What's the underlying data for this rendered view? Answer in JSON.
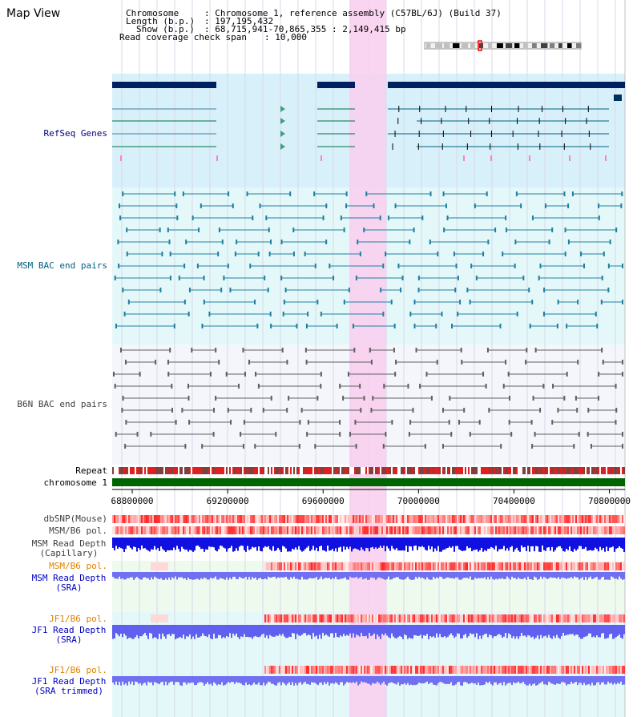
{
  "view": {
    "title": "Map View",
    "chromosome_label": "Chromosome",
    "chromosome_value": "Chromosome 1, reference assembly (C57BL/6J) (Build 37)",
    "length_label": "Length (b.p.)",
    "length_value": "197,195,432",
    "show_label": "Show (b.p.)",
    "show_value": "68,715,941-70,865,355 : 2,149,415 bp",
    "coverage_label": "Read coverage check span",
    "coverage_value": "10,000"
  },
  "tracks": {
    "refseq": "RefSeq Genes",
    "msm_bac": "MSM BAC end pairs",
    "b6n_bac": "B6N BAC end pairs",
    "repeat": "Repeat",
    "chromosome": "chromosome 1",
    "dbsnp": "dbSNP(Mouse)",
    "msm_pol": "MSM/B6 pol.",
    "msm_depth_cap_1": "MSM Read Depth",
    "msm_depth_cap_2": "(Capillary)",
    "msm_pol_sra": "MSM/B6 pol.",
    "msm_depth_sra_1": "MSM Read Depth",
    "msm_depth_sra_2": "(SRA)",
    "jf1_pol": "JF1/B6 pol.",
    "jf1_depth_1": "JF1 Read Depth",
    "jf1_depth_2": "(SRA)",
    "jf1_pol_trim": "JF1/B6 pol.",
    "jf1_depth_trim_1": "JF1 Read Depth",
    "jf1_depth_trim_2": "(SRA trimmed)"
  },
  "axis": {
    "ticks": [
      "68800000",
      "69200000",
      "69600000",
      "70000000",
      "70400000",
      "70800000"
    ],
    "range": [
      68715941,
      70865355
    ]
  },
  "colors": {
    "navy_label": "#000080",
    "teal_label": "#006080",
    "gray_label": "#404040",
    "orange_label": "#e08000",
    "blue_label": "#0000c0",
    "highlight": "#f8d0f0",
    "chromosome_bar": "#006400"
  }
}
